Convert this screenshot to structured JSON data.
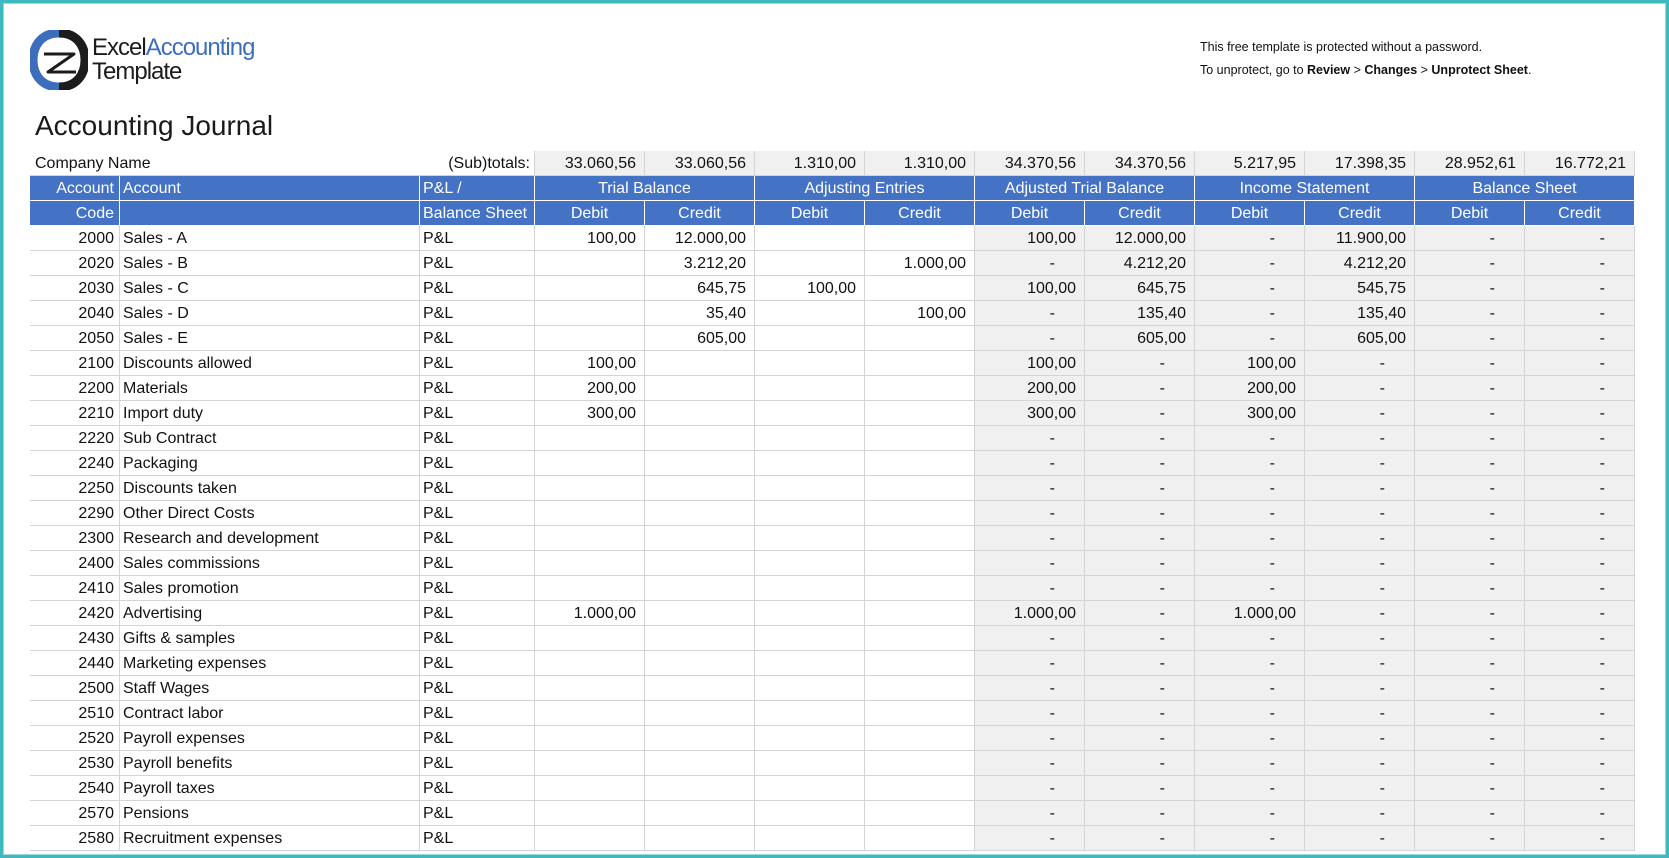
{
  "logo": {
    "word1": "Excel",
    "word2": "Accounting",
    "word3": "Template"
  },
  "notice": {
    "line1": "This free template is protected without a password.",
    "line2_prefix": "To unprotect, go to ",
    "step1": "Review",
    "sep": " > ",
    "step2": "Changes",
    "step3": "Unprotect Sheet",
    "end": "."
  },
  "title": "Accounting Journal",
  "company_label": "Company Name",
  "subtotals_label": "(Sub)totals:",
  "subtotals": [
    "33.060,56",
    "33.060,56",
    "1.310,00",
    "1.310,00",
    "34.370,56",
    "34.370,56",
    "5.217,95",
    "17.398,35",
    "28.952,61",
    "16.772,21"
  ],
  "headers": {
    "account_code_1": "Account",
    "account_code_2": "Code",
    "account": "Account",
    "pl_1": "P&L /",
    "pl_2": "Balance Sheet",
    "groups": [
      "Trial Balance",
      "Adjusting Entries",
      "Adjusted Trial Balance",
      "Income Statement",
      "Balance Sheet"
    ],
    "debit": "Debit",
    "credit": "Credit"
  },
  "rows": [
    {
      "code": "2000",
      "account": "Sales - A",
      "type": "P&L",
      "v": [
        "100,00",
        "12.000,00",
        "",
        "",
        "100,00",
        "12.000,00",
        "-",
        "11.900,00",
        "-",
        "-"
      ]
    },
    {
      "code": "2020",
      "account": "Sales - B",
      "type": "P&L",
      "v": [
        "",
        "3.212,20",
        "",
        "1.000,00",
        "-",
        "4.212,20",
        "-",
        "4.212,20",
        "-",
        "-"
      ]
    },
    {
      "code": "2030",
      "account": "Sales - C",
      "type": "P&L",
      "v": [
        "",
        "645,75",
        "100,00",
        "",
        "100,00",
        "645,75",
        "-",
        "545,75",
        "-",
        "-"
      ]
    },
    {
      "code": "2040",
      "account": "Sales - D",
      "type": "P&L",
      "v": [
        "",
        "35,40",
        "",
        "100,00",
        "-",
        "135,40",
        "-",
        "135,40",
        "-",
        "-"
      ]
    },
    {
      "code": "2050",
      "account": "Sales - E",
      "type": "P&L",
      "v": [
        "",
        "605,00",
        "",
        "",
        "-",
        "605,00",
        "-",
        "605,00",
        "-",
        "-"
      ]
    },
    {
      "code": "2100",
      "account": "Discounts allowed",
      "type": "P&L",
      "v": [
        "100,00",
        "",
        "",
        "",
        "100,00",
        "-",
        "100,00",
        "-",
        "-",
        "-"
      ]
    },
    {
      "code": "2200",
      "account": "Materials",
      "type": "P&L",
      "v": [
        "200,00",
        "",
        "",
        "",
        "200,00",
        "-",
        "200,00",
        "-",
        "-",
        "-"
      ]
    },
    {
      "code": "2210",
      "account": "Import duty",
      "type": "P&L",
      "v": [
        "300,00",
        "",
        "",
        "",
        "300,00",
        "-",
        "300,00",
        "-",
        "-",
        "-"
      ]
    },
    {
      "code": "2220",
      "account": "Sub Contract",
      "type": "P&L",
      "v": [
        "",
        "",
        "",
        "",
        "-",
        "-",
        "-",
        "-",
        "-",
        "-"
      ]
    },
    {
      "code": "2240",
      "account": "Packaging",
      "type": "P&L",
      "v": [
        "",
        "",
        "",
        "",
        "-",
        "-",
        "-",
        "-",
        "-",
        "-"
      ]
    },
    {
      "code": "2250",
      "account": "Discounts taken",
      "type": "P&L",
      "v": [
        "",
        "",
        "",
        "",
        "-",
        "-",
        "-",
        "-",
        "-",
        "-"
      ]
    },
    {
      "code": "2290",
      "account": "Other Direct Costs",
      "type": "P&L",
      "v": [
        "",
        "",
        "",
        "",
        "-",
        "-",
        "-",
        "-",
        "-",
        "-"
      ]
    },
    {
      "code": "2300",
      "account": "Research and development",
      "type": "P&L",
      "v": [
        "",
        "",
        "",
        "",
        "-",
        "-",
        "-",
        "-",
        "-",
        "-"
      ]
    },
    {
      "code": "2400",
      "account": "Sales commissions",
      "type": "P&L",
      "v": [
        "",
        "",
        "",
        "",
        "-",
        "-",
        "-",
        "-",
        "-",
        "-"
      ]
    },
    {
      "code": "2410",
      "account": "Sales promotion",
      "type": "P&L",
      "v": [
        "",
        "",
        "",
        "",
        "-",
        "-",
        "-",
        "-",
        "-",
        "-"
      ]
    },
    {
      "code": "2420",
      "account": "Advertising",
      "type": "P&L",
      "v": [
        "1.000,00",
        "",
        "",
        "",
        "1.000,00",
        "-",
        "1.000,00",
        "-",
        "-",
        "-"
      ]
    },
    {
      "code": "2430",
      "account": "Gifts & samples",
      "type": "P&L",
      "v": [
        "",
        "",
        "",
        "",
        "-",
        "-",
        "-",
        "-",
        "-",
        "-"
      ]
    },
    {
      "code": "2440",
      "account": "Marketing expenses",
      "type": "P&L",
      "v": [
        "",
        "",
        "",
        "",
        "-",
        "-",
        "-",
        "-",
        "-",
        "-"
      ]
    },
    {
      "code": "2500",
      "account": "Staff Wages",
      "type": "P&L",
      "v": [
        "",
        "",
        "",
        "",
        "-",
        "-",
        "-",
        "-",
        "-",
        "-"
      ]
    },
    {
      "code": "2510",
      "account": "Contract labor",
      "type": "P&L",
      "v": [
        "",
        "",
        "",
        "",
        "-",
        "-",
        "-",
        "-",
        "-",
        "-"
      ]
    },
    {
      "code": "2520",
      "account": "Payroll expenses",
      "type": "P&L",
      "v": [
        "",
        "",
        "",
        "",
        "-",
        "-",
        "-",
        "-",
        "-",
        "-"
      ]
    },
    {
      "code": "2530",
      "account": "Payroll benefits",
      "type": "P&L",
      "v": [
        "",
        "",
        "",
        "",
        "-",
        "-",
        "-",
        "-",
        "-",
        "-"
      ]
    },
    {
      "code": "2540",
      "account": "Payroll taxes",
      "type": "P&L",
      "v": [
        "",
        "",
        "",
        "",
        "-",
        "-",
        "-",
        "-",
        "-",
        "-"
      ]
    },
    {
      "code": "2570",
      "account": "Pensions",
      "type": "P&L",
      "v": [
        "",
        "",
        "",
        "",
        "-",
        "-",
        "-",
        "-",
        "-",
        "-"
      ]
    },
    {
      "code": "2580",
      "account": "Recruitment expenses",
      "type": "P&L",
      "v": [
        "",
        "",
        "",
        "",
        "-",
        "-",
        "-",
        "-",
        "-",
        "-"
      ]
    }
  ],
  "colors": {
    "header_blue": "#4472c4",
    "frame": "#3fb8bf",
    "shade": "#f0f0f0",
    "logo_blue": "#3d6ebd"
  },
  "icons": {
    "logo": "excel-accounting-template-logo-icon"
  }
}
